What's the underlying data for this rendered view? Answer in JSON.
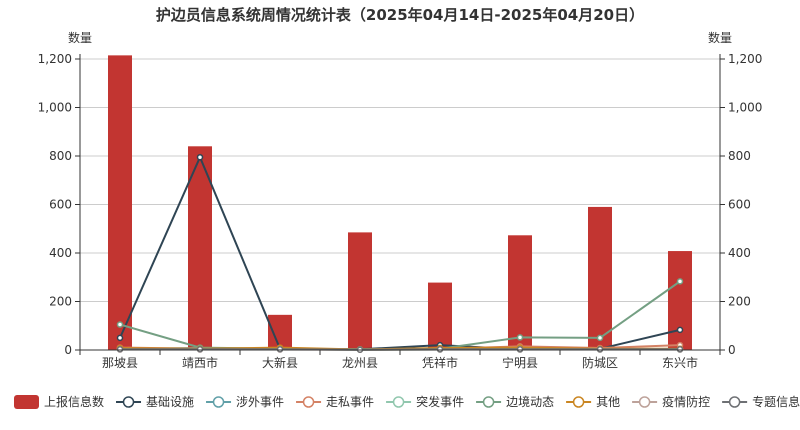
{
  "chart_data": {
    "type": "bar",
    "title": "护边员信息系统周情况统计表（2025年04月14日-2025年04月20日）",
    "ylabel_left": "数量",
    "ylabel_right": "数量",
    "ylim": [
      0,
      1200
    ],
    "yticks": [
      0,
      200,
      400,
      600,
      800,
      1000,
      1200
    ],
    "ytick_labels": [
      "0",
      "200",
      "400",
      "600",
      "800",
      "1,000",
      "1,200"
    ],
    "categories": [
      "那坡县",
      "靖西市",
      "大新县",
      "龙州县",
      "凭祥市",
      "宁明县",
      "防城区",
      "东兴市"
    ],
    "bar_series": {
      "name": "上报信息数",
      "color": "#c23531",
      "values": [
        1215,
        840,
        145,
        485,
        278,
        473,
        590,
        408
      ]
    },
    "line_series": [
      {
        "name": "基础设施",
        "color": "#2f4554",
        "values": [
          50,
          795,
          5,
          3,
          20,
          3,
          5,
          83
        ]
      },
      {
        "name": "涉外事件",
        "color": "#61a0a8",
        "values": [
          5,
          8,
          5,
          2,
          5,
          3,
          5,
          3
        ]
      },
      {
        "name": "走私事件",
        "color": "#d48265",
        "values": [
          10,
          5,
          5,
          2,
          5,
          15,
          8,
          20
        ]
      },
      {
        "name": "突发事件",
        "color": "#91c7ae",
        "values": [
          3,
          3,
          3,
          1,
          2,
          2,
          2,
          2
        ]
      },
      {
        "name": "边境动态",
        "color": "#749f83",
        "values": [
          105,
          10,
          5,
          3,
          5,
          52,
          50,
          283
        ]
      },
      {
        "name": "其他",
        "color": "#ca8622",
        "values": [
          8,
          5,
          10,
          2,
          8,
          10,
          5,
          5
        ]
      },
      {
        "name": "疫情防控",
        "color": "#bda29a",
        "values": [
          2,
          2,
          2,
          1,
          2,
          2,
          2,
          2
        ]
      },
      {
        "name": "专题信息",
        "color": "#6e7074",
        "values": [
          3,
          3,
          3,
          1,
          3,
          3,
          3,
          3
        ]
      }
    ],
    "legend_position": "bottom",
    "grid": true
  }
}
